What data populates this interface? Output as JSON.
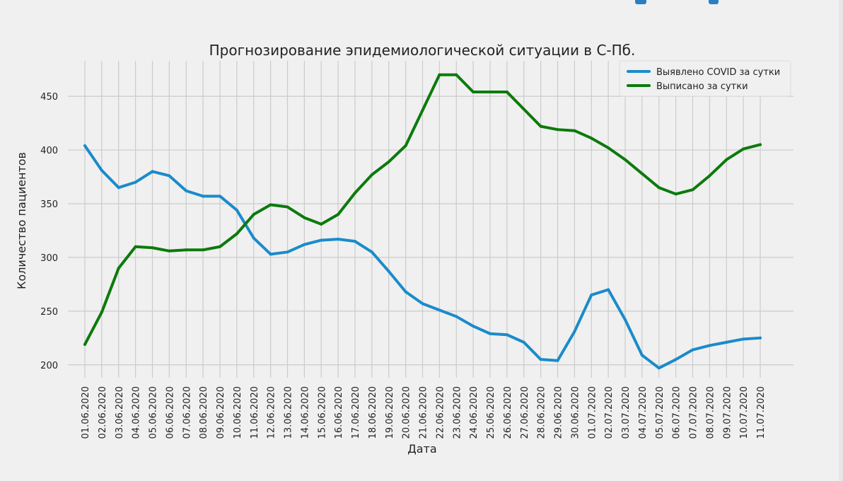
{
  "chart_data": {
    "type": "line",
    "title": "Прогнозирование эпидемиологической ситуации в С-Пб.",
    "xlabel": "Дата",
    "ylabel": "Количество пациентов",
    "categories": [
      "01.06.2020",
      "02.06.2020",
      "03.06.2020",
      "04.06.2020",
      "05.06.2020",
      "06.06.2020",
      "07.06.2020",
      "08.06.2020",
      "09.06.2020",
      "10.06.2020",
      "11.06.2020",
      "12.06.2020",
      "13.06.2020",
      "14.06.2020",
      "15.06.2020",
      "16.06.2020",
      "17.06.2020",
      "18.06.2020",
      "19.06.2020",
      "20.06.2020",
      "21.06.2020",
      "22.06.2020",
      "23.06.2020",
      "24.06.2020",
      "25.06.2020",
      "26.06.2020",
      "27.06.2020",
      "28.06.2020",
      "29.06.2020",
      "30.06.2020",
      "01.07.2020",
      "02.07.2020",
      "03.07.2020",
      "04.07.2020",
      "05.07.2020",
      "06.07.2020",
      "07.07.2020",
      "08.07.2020",
      "09.07.2020",
      "10.07.2020",
      "11.07.2020"
    ],
    "series": [
      {
        "name": "Выявлено COVID за сутки",
        "color": "#1a8bca",
        "values": [
          404,
          381,
          365,
          370,
          380,
          376,
          362,
          357,
          357,
          344,
          318,
          303,
          305,
          312,
          316,
          317,
          315,
          305,
          287,
          268,
          257,
          251,
          245,
          236,
          229,
          228,
          221,
          205,
          204,
          231,
          265,
          270,
          242,
          209,
          197,
          205,
          214,
          218,
          221,
          224,
          225
        ]
      },
      {
        "name": "Выписано за сутки",
        "color": "#0c7a0c",
        "values": [
          219,
          249,
          290,
          310,
          309,
          306,
          307,
          307,
          310,
          322,
          340,
          349,
          347,
          337,
          331,
          340,
          360,
          377,
          389,
          404,
          437,
          470,
          470,
          454,
          454,
          454,
          438,
          422,
          419,
          418,
          411,
          402,
          391,
          378,
          365,
          359,
          363,
          376,
          391,
          401,
          405
        ]
      }
    ],
    "yticks": [
      200,
      250,
      300,
      350,
      400,
      450
    ],
    "ylim": [
      188,
      483
    ],
    "grid": true,
    "legend_position": "top-right"
  }
}
